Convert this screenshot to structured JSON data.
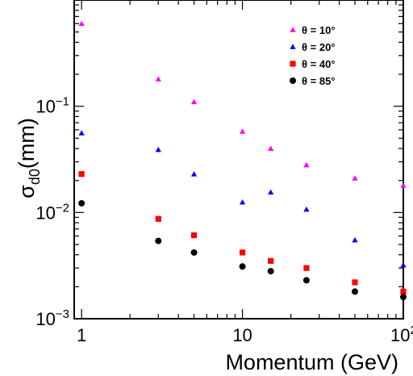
{
  "chart_data": {
    "type": "scatter",
    "xlabel": "Momentum (GeV)",
    "ylabel_main": "σ",
    "ylabel_sub": "d0",
    "ylabel_unit": "(mm)",
    "x_scale": "log",
    "y_scale": "log",
    "xlim": [
      0.9,
      100
    ],
    "ylim": [
      0.001,
      1.0
    ],
    "x_ticks": [
      {
        "value": 1,
        "label": "1"
      },
      {
        "value": 10,
        "label": "10"
      },
      {
        "value": 100,
        "base": "10",
        "exp": "2"
      }
    ],
    "y_ticks": [
      {
        "value": 0.001,
        "base": "10",
        "exp": "−3"
      },
      {
        "value": 0.01,
        "base": "10",
        "exp": "−2"
      },
      {
        "value": 0.1,
        "base": "10",
        "exp": "−1"
      }
    ],
    "grid": false,
    "legend_position": "top-right",
    "series": [
      {
        "name": "θ = 10°",
        "color": "#ff00ff",
        "marker": "triangle",
        "x": [
          1,
          3,
          5,
          10,
          15,
          25,
          50,
          100
        ],
        "y": [
          0.6,
          0.18,
          0.11,
          0.058,
          0.04,
          0.028,
          0.021,
          0.018
        ]
      },
      {
        "name": "θ = 20°",
        "color": "#0000ff",
        "marker": "triangle",
        "x": [
          1,
          3,
          5,
          10,
          15,
          25,
          50,
          100
        ],
        "y": [
          0.056,
          0.039,
          0.023,
          0.0125,
          0.0155,
          0.0107,
          0.0055,
          0.0032
        ]
      },
      {
        "name": "θ = 40°",
        "color": "#ff0000",
        "marker": "square",
        "x": [
          1,
          3,
          5,
          10,
          15,
          25,
          50,
          100
        ],
        "y": [
          0.023,
          0.0087,
          0.0061,
          0.0042,
          0.0035,
          0.003,
          0.0022,
          0.0018
        ]
      },
      {
        "name": "θ = 85°",
        "color": "#000000",
        "marker": "circle",
        "x": [
          1,
          3,
          5,
          10,
          15,
          25,
          50,
          100
        ],
        "y": [
          0.0122,
          0.0054,
          0.0042,
          0.0031,
          0.0028,
          0.0023,
          0.0018,
          0.0016
        ]
      }
    ]
  }
}
